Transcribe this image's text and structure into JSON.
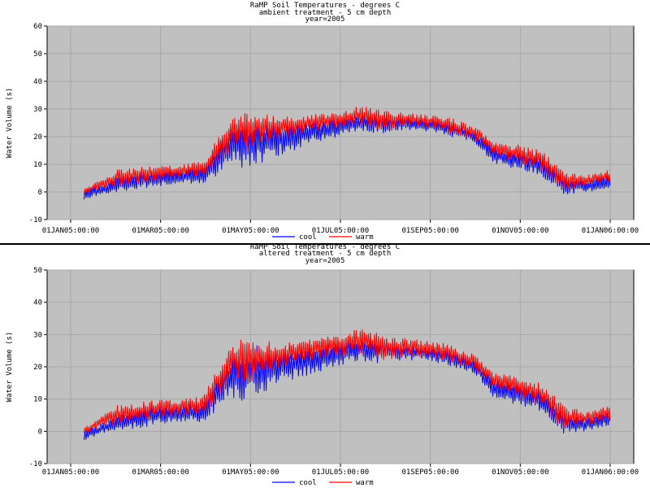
{
  "colors": {
    "cool": "#0000ff",
    "warm": "#ff0000",
    "plot_bg": "#c0c0c0",
    "grid": "#a8a8a8"
  },
  "chart_data": [
    {
      "type": "line",
      "title": "RaMP Soil Temperatures - degrees C",
      "subtitle": "ambient treatment - 5 cm depth",
      "group_label": "year=2005",
      "ylabel": "Water Volume (s)",
      "xlabel": "",
      "ylim": [
        -10,
        60
      ],
      "yticks": [
        -10,
        0,
        10,
        20,
        30,
        40,
        50,
        60
      ],
      "xticks": [
        "01JAN05:00:00",
        "01MAR05:00:00",
        "01MAY05:00:00",
        "01JUL05:00:00",
        "01SEP05:00:00",
        "01NOV05:00:00",
        "01JAN06:00:00"
      ],
      "grid": true,
      "legend": {
        "position": "top",
        "entries": [
          "cool",
          "warm"
        ]
      },
      "series": [
        {
          "name": "cool",
          "color": "#0000ff",
          "x": [
            "2005-01-10",
            "2005-01-20",
            "2005-02-01",
            "2005-02-15",
            "2005-03-01",
            "2005-03-15",
            "2005-04-01",
            "2005-04-10",
            "2005-04-20",
            "2005-05-01",
            "2005-05-15",
            "2005-06-01",
            "2005-06-15",
            "2005-07-01",
            "2005-07-15",
            "2005-08-01",
            "2005-08-15",
            "2005-09-01",
            "2005-09-15",
            "2005-10-01",
            "2005-10-15",
            "2005-11-01",
            "2005-11-15",
            "2005-12-01",
            "2005-12-15",
            "2006-01-01"
          ],
          "min": [
            -3,
            -1,
            0,
            1,
            2,
            3,
            3,
            6,
            10,
            8,
            12,
            15,
            18,
            20,
            22,
            21,
            22,
            22,
            20,
            18,
            10,
            8,
            6,
            -1,
            0,
            1
          ],
          "max": [
            1,
            2,
            5,
            7,
            8,
            8,
            9,
            18,
            25,
            27,
            26,
            25,
            26,
            27,
            28,
            28,
            27,
            26,
            25,
            22,
            16,
            15,
            13,
            6,
            4,
            6
          ]
        },
        {
          "name": "warm",
          "color": "#ff0000",
          "x": [
            "2005-01-10",
            "2005-01-20",
            "2005-02-01",
            "2005-02-15",
            "2005-03-01",
            "2005-03-15",
            "2005-04-01",
            "2005-04-10",
            "2005-04-20",
            "2005-05-01",
            "2005-05-15",
            "2005-06-01",
            "2005-06-15",
            "2005-07-01",
            "2005-07-15",
            "2005-08-01",
            "2005-08-15",
            "2005-09-01",
            "2005-09-15",
            "2005-10-01",
            "2005-10-15",
            "2005-11-01",
            "2005-11-15",
            "2005-12-01",
            "2005-12-15",
            "2006-01-01"
          ],
          "min": [
            -1,
            1,
            2,
            3,
            4,
            5,
            5,
            10,
            15,
            14,
            18,
            20,
            22,
            23,
            24,
            22,
            23,
            23,
            21,
            19,
            13,
            10,
            8,
            0,
            2,
            3
          ],
          "max": [
            1,
            4,
            8,
            9,
            10,
            10,
            11,
            20,
            28,
            30,
            28,
            27,
            28,
            29,
            31,
            30,
            29,
            28,
            27,
            24,
            18,
            17,
            15,
            8,
            6,
            8
          ]
        }
      ]
    },
    {
      "type": "line",
      "title": "RaMP Soil Temperatures - degrees C",
      "subtitle": "altered treatment - 5 cm depth",
      "group_label": "year=2005",
      "ylabel": "Water Volume (s)",
      "xlabel": "",
      "ylim": [
        -10,
        50
      ],
      "yticks": [
        -10,
        0,
        10,
        20,
        30,
        40,
        50
      ],
      "xticks": [
        "01JAN05:00:00",
        "01MAR05:00:00",
        "01MAY05:00:00",
        "01JUL05:00:00",
        "01SEP05:00:00",
        "01NOV05:00:00",
        "01JAN06:00:00"
      ],
      "grid": true,
      "legend": {
        "position": "bottom",
        "entries": [
          "cool",
          "warm"
        ]
      },
      "series": [
        {
          "name": "cool",
          "color": "#0000ff",
          "x": [
            "2005-01-10",
            "2005-01-20",
            "2005-02-01",
            "2005-02-15",
            "2005-03-01",
            "2005-03-15",
            "2005-04-01",
            "2005-04-10",
            "2005-04-20",
            "2005-05-01",
            "2005-05-15",
            "2005-06-01",
            "2005-06-15",
            "2005-07-01",
            "2005-07-15",
            "2005-08-01",
            "2005-08-15",
            "2005-09-01",
            "2005-09-15",
            "2005-10-01",
            "2005-10-15",
            "2005-11-01",
            "2005-11-15",
            "2005-12-01",
            "2005-12-15",
            "2006-01-01"
          ],
          "min": [
            -3,
            -1,
            0,
            1,
            2,
            3,
            3,
            6,
            10,
            9,
            13,
            16,
            18,
            20,
            22,
            21,
            22,
            22,
            20,
            18,
            10,
            8,
            6,
            -1,
            0,
            2
          ],
          "max": [
            1,
            2,
            5,
            7,
            8,
            8,
            9,
            18,
            25,
            27,
            26,
            26,
            27,
            28,
            29,
            29,
            27,
            26,
            25,
            22,
            16,
            15,
            13,
            6,
            4,
            6
          ]
        },
        {
          "name": "warm",
          "color": "#ff0000",
          "x": [
            "2005-01-10",
            "2005-01-20",
            "2005-02-01",
            "2005-02-15",
            "2005-03-01",
            "2005-03-15",
            "2005-04-01",
            "2005-04-10",
            "2005-04-20",
            "2005-05-01",
            "2005-05-15",
            "2005-06-01",
            "2005-06-15",
            "2005-07-01",
            "2005-07-15",
            "2005-08-01",
            "2005-08-15",
            "2005-09-01",
            "2005-09-15",
            "2005-10-01",
            "2005-10-15",
            "2005-11-01",
            "2005-11-15",
            "2005-12-01",
            "2005-12-15",
            "2006-01-01"
          ],
          "min": [
            -1,
            1,
            2,
            3,
            4,
            5,
            5,
            10,
            15,
            14,
            18,
            20,
            22,
            23,
            24,
            22,
            23,
            23,
            21,
            19,
            13,
            10,
            8,
            0,
            2,
            3
          ],
          "max": [
            1,
            4,
            8,
            9,
            10,
            10,
            11,
            20,
            29,
            29,
            28,
            28,
            29,
            30,
            32,
            30,
            29,
            28,
            27,
            24,
            18,
            17,
            15,
            8,
            6,
            8
          ]
        }
      ]
    }
  ]
}
